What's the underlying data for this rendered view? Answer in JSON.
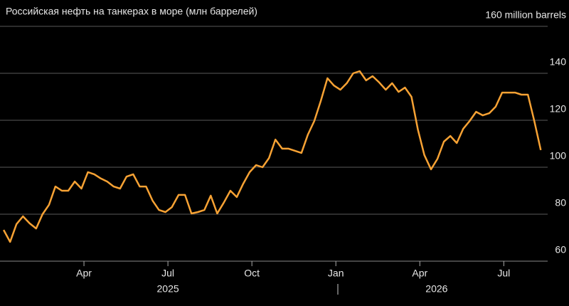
{
  "chart_data": {
    "type": "line",
    "title": "Российская нефть на танкерах в море (млн баррелей)",
    "x": [
      0.13,
      0.36,
      0.59,
      0.82,
      1.06,
      1.29,
      1.52,
      1.75,
      1.98,
      2.21,
      2.44,
      2.67,
      2.91,
      3.14,
      3.37,
      3.6,
      3.83,
      4.06,
      4.29,
      4.52,
      4.76,
      4.99,
      5.22,
      5.45,
      5.68,
      5.91,
      6.14,
      6.38,
      6.61,
      6.84,
      7.07,
      7.3,
      7.53,
      7.76,
      7.99,
      8.23,
      8.46,
      8.69,
      8.92,
      9.15,
      9.38,
      9.61,
      9.84,
      10.08,
      10.31,
      10.54,
      10.77,
      11.0,
      11.23,
      11.46,
      11.7,
      11.93,
      12.16,
      12.39,
      12.62,
      12.85,
      13.08,
      13.31,
      13.55,
      13.78,
      14.01,
      14.24,
      14.47,
      14.7,
      14.93,
      15.16,
      15.4,
      15.63,
      15.86,
      16.09,
      16.32,
      16.55,
      16.78,
      17.01,
      17.25,
      17.48,
      17.71,
      17.94,
      18.17,
      18.4,
      18.63,
      18.86,
      19.09,
      19.32
    ],
    "series": [
      {
        "color": "#f7a234",
        "values": [
          73.3,
          68.2,
          75.8,
          79.1,
          76.1,
          73.9,
          80,
          84,
          91.8,
          90,
          90,
          93.9,
          90.9,
          97.9,
          97,
          95.2,
          93.9,
          91.8,
          90.9,
          96,
          97,
          91.8,
          91.8,
          85.8,
          81.8,
          80.9,
          83,
          88.2,
          88.2,
          80.3,
          80.9,
          81.8,
          87.9,
          80.3,
          84.8,
          90,
          87.3,
          93,
          97.9,
          100.9,
          100,
          103.9,
          111.8,
          107.9,
          107.9,
          107,
          106.1,
          113.9,
          119.7,
          128.2,
          137.9,
          134.8,
          133,
          135.8,
          140,
          140.9,
          137,
          138.8,
          136.1,
          133,
          135.8,
          132.1,
          133.9,
          130,
          116.1,
          105.2,
          99.1,
          103.6,
          110.9,
          113.3,
          110.3,
          116.4,
          119.7,
          123.6,
          122.1,
          123,
          125.8,
          131.8,
          131.8,
          131.8,
          130.9,
          130.9,
          119.7,
          107.3
        ]
      }
    ],
    "xlim": [
      0,
      20.33
    ],
    "xticks": [
      {
        "value": 3,
        "label": "Apr"
      },
      {
        "value": 6,
        "label": "Jul"
      },
      {
        "value": 9,
        "label": "Oct"
      },
      {
        "value": 12,
        "label": "Jan"
      },
      {
        "value": 15,
        "label": "Apr"
      },
      {
        "value": 18,
        "label": "Jul"
      }
    ],
    "x_group_labels": [
      {
        "value": 6,
        "label": "2025"
      },
      {
        "value": 15.6,
        "label": "2026"
      }
    ],
    "ylim": [
      60,
      160
    ],
    "yticks": [
      60,
      80,
      100,
      120,
      140,
      {
        "value": 160,
        "label": "160 million barrels"
      }
    ],
    "grid": true
  }
}
